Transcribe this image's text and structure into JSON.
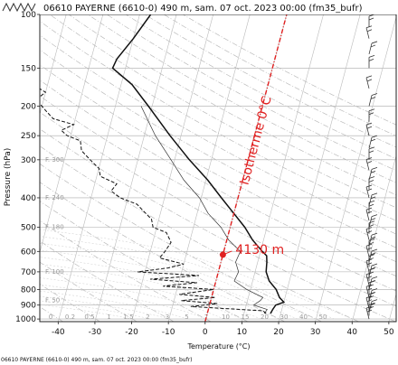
{
  "header": {
    "title": "06610 PAYERNE (6610-0) 490 m, sam. 07 oct. 2023 00:00 (fm35_bufr)"
  },
  "footer": {
    "caption": "06610 PAYERNE (6610-0) 490 m, sam. 07 oct. 2023 00:00 (fm35_bufr)"
  },
  "chart_data": {
    "type": "line",
    "title": "06610 PAYERNE (6610-0) 490 m, sam. 07 oct. 2023 00:00 (fm35_bufr)",
    "xlabel": "Temperature (°C)",
    "ylabel": "Pressure (hPa)",
    "xlim": [
      -45,
      52
    ],
    "ylim": [
      1020,
      100
    ],
    "yscale": "log",
    "x_ticks": [
      -40,
      -30,
      -20,
      -10,
      0,
      10,
      20,
      30,
      40,
      50
    ],
    "y_ticks": [
      100,
      150,
      200,
      250,
      300,
      400,
      500,
      600,
      700,
      800,
      900,
      1000
    ],
    "skew_per_decade": 22,
    "mixing_ratio_labels": [
      "0",
      "0.2",
      "0.5",
      "1",
      "1.5",
      "2",
      "3",
      "5",
      "7",
      "10",
      "15",
      "20",
      "30",
      "40",
      "50"
    ],
    "height_labels": [
      "F. 50",
      "F. 100",
      "F. 180",
      "F. 240",
      "F. 300"
    ],
    "series": [
      {
        "name": "",
        "style": "solid-thick",
        "points": [
          [
            17.2,
            960
          ],
          [
            17.5,
            930
          ],
          [
            18.0,
            900
          ],
          [
            20.0,
            880
          ],
          [
            18.5,
            850
          ],
          [
            17.0,
            800
          ],
          [
            14.5,
            750
          ],
          [
            13.0,
            700
          ],
          [
            12.5,
            650
          ],
          [
            12.0,
            620
          ],
          [
            10.5,
            600
          ],
          [
            7.0,
            550
          ],
          [
            4.0,
            500
          ],
          [
            0.0,
            450
          ],
          [
            -4.5,
            400
          ],
          [
            -9.5,
            350
          ],
          [
            -16.0,
            300
          ],
          [
            -23.0,
            250
          ],
          [
            -31.0,
            200
          ],
          [
            -37.0,
            170
          ],
          [
            -43.5,
            150
          ],
          [
            -43.0,
            140
          ],
          [
            -40.0,
            120
          ],
          [
            -37.0,
            100
          ]
        ]
      },
      {
        "name": "",
        "style": "solid-thin",
        "points": [
          [
            15.5,
            960
          ],
          [
            16.0,
            930
          ],
          [
            12.0,
            900
          ],
          [
            13.5,
            870
          ],
          [
            14.0,
            850
          ],
          [
            9.0,
            800
          ],
          [
            5.0,
            750
          ],
          [
            5.5,
            700
          ],
          [
            4.0,
            650
          ],
          [
            4.5,
            600
          ],
          [
            0.5,
            550
          ],
          [
            -2.5,
            500
          ],
          [
            -7.0,
            450
          ],
          [
            -10.5,
            400
          ],
          [
            -16.0,
            350
          ],
          [
            -21.0,
            300
          ],
          [
            -27.0,
            250
          ],
          [
            -33.0,
            200
          ]
        ]
      },
      {
        "name": "",
        "style": "dashed",
        "points": [
          [
            16.0,
            960
          ],
          [
            15.0,
            940
          ],
          [
            -5.0,
            910
          ],
          [
            2.0,
            890
          ],
          [
            -8.0,
            870
          ],
          [
            1.0,
            850
          ],
          [
            -9.0,
            830
          ],
          [
            0.0,
            800
          ],
          [
            -14.0,
            780
          ],
          [
            -5.0,
            760
          ],
          [
            -18.0,
            740
          ],
          [
            -5.0,
            720
          ],
          [
            -22.0,
            700
          ],
          [
            -14.0,
            680
          ],
          [
            -10.0,
            660
          ],
          [
            -17.0,
            630
          ],
          [
            -16.0,
            600
          ],
          [
            -15.0,
            560
          ],
          [
            -17.0,
            520
          ],
          [
            -21.0,
            500
          ],
          [
            -22.0,
            470
          ],
          [
            -25.0,
            440
          ],
          [
            -27.0,
            420
          ],
          [
            -32.0,
            400
          ],
          [
            -35.0,
            380
          ],
          [
            -34.0,
            360
          ],
          [
            -39.0,
            340
          ],
          [
            -40.0,
            320
          ],
          [
            -43.0,
            300
          ],
          [
            -46.0,
            280
          ],
          [
            -47.0,
            260
          ],
          [
            -51.0,
            250
          ],
          [
            -53.0,
            240
          ],
          [
            -50.0,
            230
          ],
          [
            -56.0,
            220
          ],
          [
            -58.0,
            210
          ],
          [
            -60.0,
            200
          ],
          [
            -62.0,
            190
          ],
          [
            -60.0,
            180
          ],
          [
            -64.0,
            170
          ],
          [
            -68.0,
            160
          ],
          [
            -66.0,
            150
          ],
          [
            -70.0,
            140
          ],
          [
            -71.0,
            130
          ],
          [
            -73.0,
            120
          ],
          [
            -75.0,
            110
          ],
          [
            -78.0,
            100
          ]
        ]
      }
    ],
    "annotations": {
      "isotherm_label": "Isotherme 0°C",
      "freezing_level_label": "4130 m",
      "freezing_level_point": [
        0,
        615
      ],
      "isotherm_value": 0
    },
    "wind_barbs": {
      "levels": [
        1000,
        975,
        950,
        925,
        900,
        875,
        850,
        825,
        800,
        775,
        750,
        725,
        700,
        675,
        650,
        625,
        600,
        575,
        550,
        525,
        500,
        475,
        450,
        425,
        400,
        375,
        350,
        325,
        300,
        275,
        250,
        225,
        200,
        175,
        150,
        135,
        120,
        110,
        100
      ]
    }
  }
}
